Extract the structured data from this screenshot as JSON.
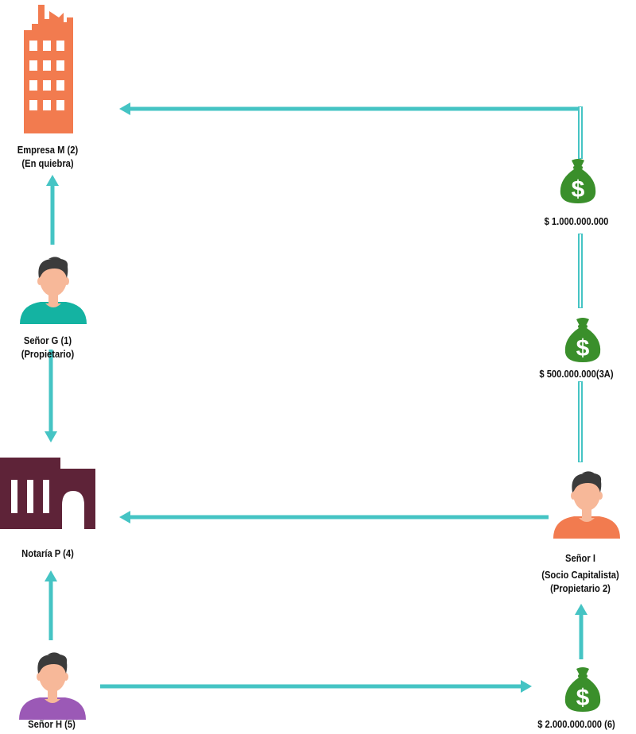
{
  "nodes": {
    "empresa": {
      "line1": "Empresa M (2)",
      "line2": "(En quiebra)",
      "icon": "office-building-icon"
    },
    "senor_g": {
      "line1": "Señor G (1)",
      "line2": "(Propietario)",
      "icon": "person-icon"
    },
    "notaria": {
      "line1": "Notaría P (4)",
      "icon": "notary-building-icon"
    },
    "senor_h": {
      "line1": "Señor H (5)",
      "icon": "person-icon"
    },
    "senor_i": {
      "line1": "Señor I",
      "line2": "(Socio Capitalista)",
      "line3": "(Propietario 2)",
      "icon": "person-icon"
    },
    "money_1": {
      "label": "$ 1.000.000.000",
      "icon": "money-bag-icon"
    },
    "money_2": {
      "label": "$ 500.000.000(3A)",
      "icon": "money-bag-icon"
    },
    "money_3": {
      "label": "$ 2.000.000.000 (6)",
      "icon": "money-bag-icon"
    }
  },
  "colors": {
    "arrow": "#45c4c4",
    "building": "#f27b4f",
    "notary": "#5e2338",
    "money": "#3a8f2b",
    "skin": "#f7b899",
    "hair": "#3b3b3b",
    "shirt_g": "#14b3a2",
    "shirt_h": "#9b59b6",
    "shirt_i": "#f27b4f"
  }
}
